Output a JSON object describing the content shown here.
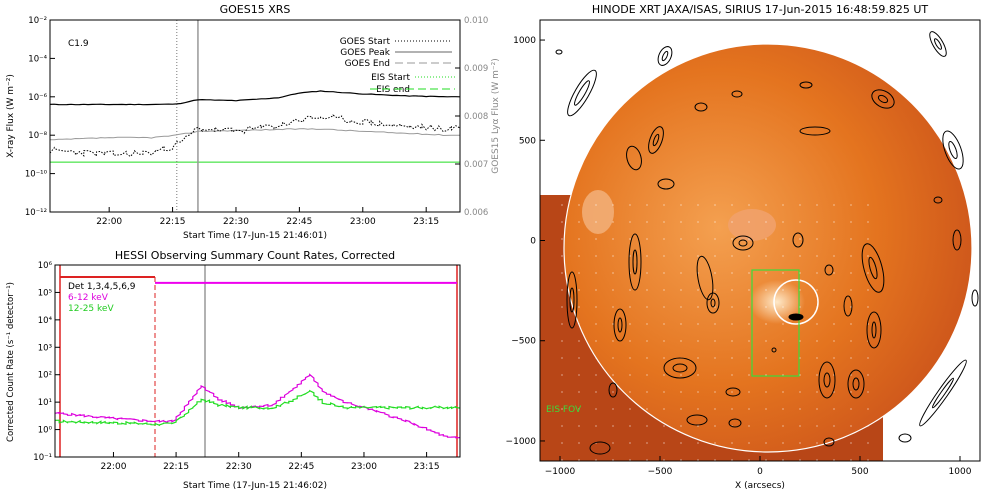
{
  "chart_data": [
    {
      "type": "line",
      "title": "GOES15 XRS",
      "xlabel": "Start Time (17-Jun-15 21:46:01)",
      "ylabel": "X-ray Flux (W m⁻²)",
      "ylabel_right": "GOES15 Lyα Flux (W m⁻²)",
      "x_ticks": [
        "22:00",
        "22:15",
        "22:30",
        "22:45",
        "23:00",
        "23:15"
      ],
      "y_ticks": [
        "10⁻²",
        "10⁻⁴",
        "10⁻⁶",
        "10⁻⁸",
        "10⁻¹⁰",
        "10⁻¹²"
      ],
      "y_ticks_right": [
        "0.010",
        "0.009",
        "0.008",
        "0.007",
        "0.006"
      ],
      "ylim": [
        -12,
        -2
      ],
      "ylim_right": [
        0.006,
        0.01
      ],
      "y_scale": "log",
      "annotation": "C1.9",
      "legend": [
        "GOES Start",
        "GOES Peak",
        "GOES End",
        "EIS Start",
        "EIS end"
      ],
      "legend_position": "top-right",
      "markers": {
        "goes_start": "22:16",
        "goes_peak": "22:21",
        "eis_start_line_log_flux": -9.4
      },
      "x": [
        "21:46",
        "22:00",
        "22:10",
        "22:16",
        "22:21",
        "22:30",
        "22:40",
        "22:45",
        "22:50",
        "23:00",
        "23:10",
        "23:20"
      ],
      "series": [
        {
          "name": "long",
          "values": [
            -6.4,
            -6.4,
            -6.4,
            -6.38,
            -6.15,
            -6.2,
            -6.05,
            -5.8,
            -5.7,
            -5.85,
            -5.95,
            -6.0
          ]
        },
        {
          "name": "short",
          "values": [
            -8.8,
            -9.0,
            -8.9,
            -8.5,
            -7.65,
            -7.8,
            -7.5,
            -7.2,
            -7.05,
            -7.3,
            -7.55,
            -7.65
          ]
        },
        {
          "name": "Lyα",
          "values": [
            0.0075,
            0.00755,
            0.00755,
            0.0076,
            0.00768,
            0.0077,
            0.00772,
            0.00773,
            0.00773,
            0.00768,
            0.00764,
            0.0076
          ]
        }
      ]
    },
    {
      "type": "line",
      "title": "HESSI Observing Summary Count Rates, Corrected",
      "xlabel": "Start Time (17-Jun-15 21:46:02)",
      "ylabel": "Corrected Count Rate (s⁻¹ detector⁻¹)",
      "x_ticks": [
        "22:00",
        "22:15",
        "22:30",
        "22:45",
        "23:00",
        "23:15"
      ],
      "y_ticks": [
        "10⁶",
        "10⁵",
        "10⁴",
        "10³",
        "10²",
        "10¹",
        "10⁰",
        "10⁻¹"
      ],
      "ylim": [
        -1,
        6
      ],
      "y_scale": "log",
      "legend": [
        "Det 1,3,4,5,6,9",
        "6-12 keV",
        "12-25 keV"
      ],
      "legend_position": "top-left",
      "x": [
        "21:46",
        "22:00",
        "22:10",
        "22:14",
        "22:18",
        "22:21",
        "22:25",
        "22:30",
        "22:38",
        "22:43",
        "22:47",
        "22:50",
        "22:55",
        "23:00",
        "23:10",
        "23:20"
      ],
      "series": [
        {
          "name": "6-12 keV",
          "values": [
            0.6,
            0.4,
            0.3,
            0.3,
            1.0,
            1.6,
            1.1,
            0.8,
            0.9,
            1.5,
            2.0,
            1.4,
            1.0,
            0.8,
            0.3,
            -0.3
          ]
        },
        {
          "name": "12-25 keV",
          "values": [
            0.3,
            0.25,
            0.2,
            0.2,
            0.7,
            1.1,
            0.9,
            0.8,
            0.8,
            1.1,
            1.4,
            1.0,
            0.8,
            0.8,
            0.8,
            0.8
          ]
        },
        {
          "name": "attenuator",
          "values": [
            5.35,
            5.35,
            5.35,
            5.35,
            5.35,
            5.35,
            5.35,
            5.35,
            5.35,
            5.35,
            5.35,
            5.35,
            5.35,
            5.35,
            5.35,
            5.35
          ]
        }
      ]
    },
    {
      "type": "map",
      "title": "HINODE XRT JAXA/ISAS, SIRIUS 17-Jun-2015 16:48:59.825 UT",
      "xlabel": "X (arcsecs)",
      "x_ticks": [
        "−1000",
        "−500",
        "0",
        "500",
        "1000"
      ],
      "y_ticks": [
        "1000",
        "500",
        "0",
        "−500",
        "−1000"
      ],
      "xlim": [
        -1100,
        1100
      ],
      "ylim": [
        -1100,
        1100
      ],
      "annotation": "EIS FOV",
      "eis_fov": {
        "x": [
          -50,
          200
        ],
        "y": [
          -700,
          -150
        ]
      }
    }
  ]
}
